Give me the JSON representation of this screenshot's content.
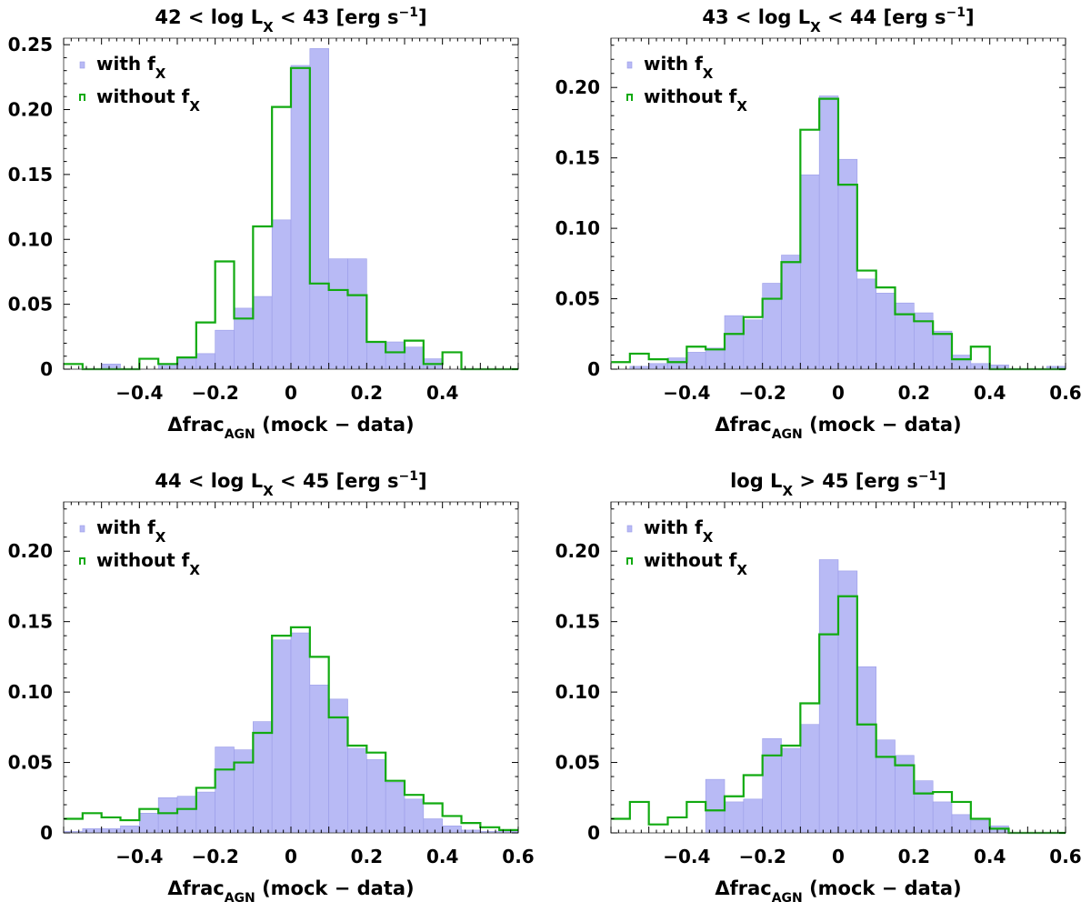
{
  "chart_data": [
    {
      "type": "histogram",
      "title": "42 < log L_X < 43 [erg s^-1]",
      "xlabel": "Δfrac_AGN (mock − data)",
      "xlim": [
        -0.6,
        0.6
      ],
      "ylim": [
        0,
        0.255
      ],
      "yticks": [
        0,
        0.05,
        0.1,
        0.15,
        0.2,
        0.25
      ],
      "ytick_labels": [
        "0",
        "0.05",
        "0.10",
        "0.15",
        "0.20",
        "0.25"
      ],
      "xticks": [
        -0.4,
        -0.2,
        0,
        0.2,
        0.4
      ],
      "xtick_labels": [
        "−0.4",
        "−0.2",
        "0",
        "0.2",
        "0.4"
      ],
      "bin_start": -0.6,
      "bin_width": 0.05,
      "series": [
        {
          "name": "with f_X",
          "style": "filled",
          "color": "#b8baf5",
          "values": [
            0,
            0,
            0.004,
            0,
            0,
            0.004,
            0.008,
            0.012,
            0.03,
            0.047,
            0.056,
            0.115,
            0.234,
            0.247,
            0.085,
            0.085,
            0.021,
            0.021,
            0.017,
            0.008,
            0,
            0,
            0,
            0
          ]
        },
        {
          "name": "without f_X",
          "style": "step",
          "color": "#11aa11",
          "values": [
            0.004,
            0,
            0,
            0,
            0.008,
            0.004,
            0.009,
            0.036,
            0.083,
            0.039,
            0.11,
            0.202,
            0.232,
            0.066,
            0.061,
            0.057,
            0.021,
            0.013,
            0.022,
            0.004,
            0.013,
            0,
            0,
            0
          ]
        }
      ]
    },
    {
      "type": "histogram",
      "title": "43 < log L_X < 44 [erg s^-1]",
      "xlabel": "Δfrac_AGN (mock − data)",
      "xlim": [
        -0.6,
        0.6
      ],
      "ylim": [
        0,
        0.235
      ],
      "yticks": [
        0,
        0.05,
        0.1,
        0.15,
        0.2
      ],
      "ytick_labels": [
        "0",
        "0.05",
        "0.10",
        "0.15",
        "0.20"
      ],
      "xticks": [
        -0.4,
        -0.2,
        0,
        0.2,
        0.4,
        0.6
      ],
      "xtick_labels": [
        "−0.4",
        "−0.2",
        "0",
        "0.2",
        "0.4",
        "0.6"
      ],
      "bin_start": -0.6,
      "bin_width": 0.05,
      "series": [
        {
          "name": "with f_X",
          "style": "filled",
          "color": "#b8baf5",
          "values": [
            0,
            0.002,
            0.004,
            0.008,
            0.012,
            0.015,
            0.038,
            0.035,
            0.061,
            0.081,
            0.138,
            0.194,
            0.149,
            0.064,
            0.054,
            0.047,
            0.04,
            0.027,
            0.01,
            0.004,
            0.003,
            0,
            0,
            0.002
          ]
        },
        {
          "name": "without f_X",
          "style": "step",
          "color": "#11aa11",
          "values": [
            0.005,
            0.011,
            0.007,
            0.005,
            0.016,
            0.014,
            0.025,
            0.037,
            0.05,
            0.076,
            0.17,
            0.192,
            0.131,
            0.07,
            0.058,
            0.039,
            0.034,
            0.025,
            0.007,
            0.016,
            0,
            0,
            0,
            0
          ]
        }
      ]
    },
    {
      "type": "histogram",
      "title": "44 < log L_X < 45 [erg s^-1]",
      "xlabel": "Δfrac_AGN (mock − data)",
      "xlim": [
        -0.6,
        0.6
      ],
      "ylim": [
        0,
        0.235
      ],
      "yticks": [
        0,
        0.05,
        0.1,
        0.15,
        0.2
      ],
      "ytick_labels": [
        "0",
        "0.05",
        "0.10",
        "0.15",
        "0.20"
      ],
      "xticks": [
        -0.4,
        -0.2,
        0,
        0.2,
        0.4,
        0.6
      ],
      "xtick_labels": [
        "−0.4",
        "−0.2",
        "0",
        "0.2",
        "0.4",
        "0.6"
      ],
      "bin_start": -0.6,
      "bin_width": 0.05,
      "series": [
        {
          "name": "with f_X",
          "style": "filled",
          "color": "#b8baf5",
          "values": [
            0.001,
            0.003,
            0.003,
            0.005,
            0.014,
            0.025,
            0.026,
            0.029,
            0.061,
            0.059,
            0.079,
            0.137,
            0.142,
            0.105,
            0.095,
            0.06,
            0.052,
            0.036,
            0.024,
            0.01,
            0.005,
            0.002,
            0.001,
            0.001
          ]
        },
        {
          "name": "without f_X",
          "style": "step",
          "color": "#11aa11",
          "values": [
            0.01,
            0.014,
            0.011,
            0.009,
            0.017,
            0.014,
            0.017,
            0.032,
            0.045,
            0.05,
            0.071,
            0.14,
            0.146,
            0.125,
            0.082,
            0.062,
            0.057,
            0.037,
            0.027,
            0.021,
            0.012,
            0.007,
            0.004,
            0.002
          ]
        }
      ]
    },
    {
      "type": "histogram",
      "title": "log L_X > 45 [erg s^-1]",
      "xlabel": "Δfrac_AGN (mock − data)",
      "xlim": [
        -0.6,
        0.6
      ],
      "ylim": [
        0,
        0.235
      ],
      "yticks": [
        0,
        0.05,
        0.1,
        0.15,
        0.2
      ],
      "ytick_labels": [
        "0",
        "0.05",
        "0.10",
        "0.15",
        "0.20"
      ],
      "xticks": [
        -0.4,
        -0.2,
        0,
        0.2,
        0.4,
        0.6
      ],
      "xtick_labels": [
        "−0.4",
        "−0.2",
        "0",
        "0.2",
        "0.4",
        "0.6"
      ],
      "bin_start": -0.6,
      "bin_width": 0.05,
      "series": [
        {
          "name": "with f_X",
          "style": "filled",
          "color": "#b8baf5",
          "values": [
            0,
            0,
            0,
            0,
            0,
            0.038,
            0.022,
            0.024,
            0.067,
            0.06,
            0.077,
            0.194,
            0.186,
            0.118,
            0.066,
            0.055,
            0.037,
            0.022,
            0.013,
            0.009,
            0.005,
            0,
            0,
            0
          ]
        },
        {
          "name": "without f_X",
          "style": "step",
          "color": "#11aa11",
          "values": [
            0.01,
            0.022,
            0.006,
            0.011,
            0.022,
            0.016,
            0.026,
            0.041,
            0.055,
            0.062,
            0.092,
            0.141,
            0.168,
            0.077,
            0.054,
            0.048,
            0.028,
            0.029,
            0.022,
            0.01,
            0.003,
            0,
            0,
            0
          ]
        }
      ]
    }
  ]
}
